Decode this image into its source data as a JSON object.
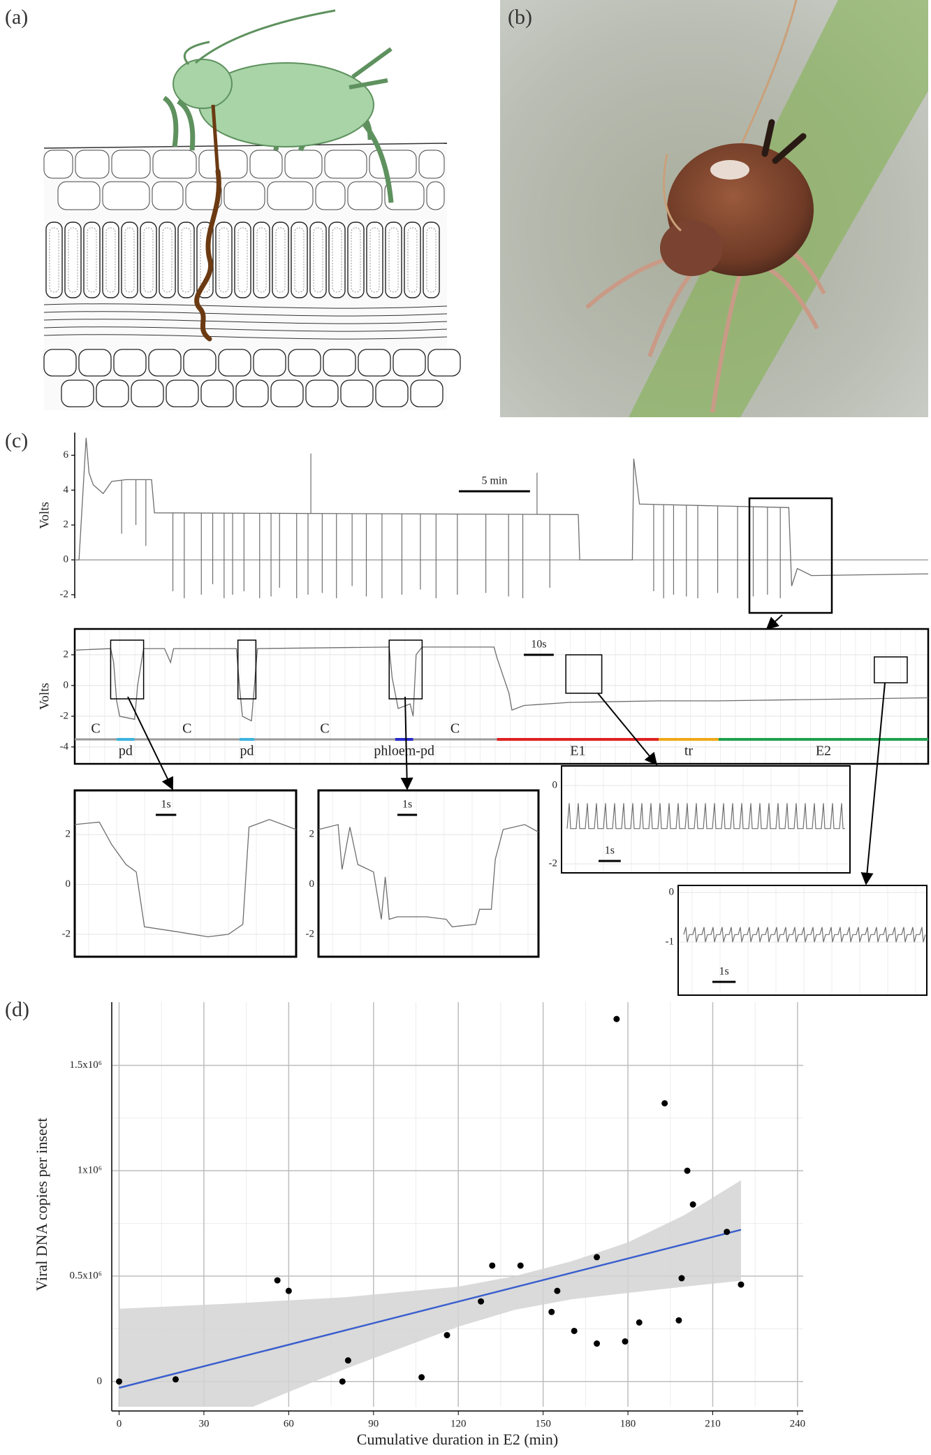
{
  "panel_labels": [
    "(a)",
    "(b)",
    "(c)",
    "(d)"
  ],
  "trace_overview": {
    "axis_label": "Volts",
    "scale_bar": "5 min",
    "scale_bar_length": 5,
    "xlim": [
      0,
      60
    ],
    "ylim": [
      -2.2,
      7.3
    ],
    "yticks": [
      -2,
      0,
      2,
      4,
      6
    ],
    "x": [
      0,
      0.3,
      0.8,
      1.0,
      1.3,
      2.0,
      2.6,
      3.6,
      4.6,
      5.4,
      5.6,
      35.4,
      35.5,
      39.2,
      39.3,
      39.7,
      50.2,
      50.4,
      50.8,
      51.8,
      60
    ],
    "y": [
      0,
      0,
      7,
      5,
      4.3,
      3.8,
      4.5,
      4.6,
      4.6,
      4.6,
      2.7,
      2.6,
      0,
      0,
      5.8,
      3.2,
      3,
      -1.5,
      -0.5,
      -0.9,
      -0.8
    ],
    "excursions": {
      "x": [
        3.3,
        4.3,
        5.0,
        6.9,
        7.7,
        8.9,
        9.7,
        10.5,
        11.1,
        11.9,
        13.0,
        13.8,
        14.4,
        15.6,
        16.4,
        17.4,
        18.4,
        19.5,
        20.5,
        21.6,
        23.0,
        24.3,
        25.4,
        26.9,
        28.9,
        30.5,
        31.5,
        33.4,
        16.6,
        32.5,
        40.7,
        41.4,
        42.1,
        43.0,
        43.8,
        45.2,
        46.6,
        47.7,
        48.7,
        49.6
      ],
      "y": [
        1.5,
        2,
        0.8,
        -1.8,
        -2.2,
        -2.0,
        -1.4,
        -2.2,
        -2.0,
        -1.8,
        -2.2,
        -2.1,
        -1.6,
        -2.2,
        -2.0,
        -1.9,
        -2.2,
        -1.5,
        -2.1,
        -2.2,
        -2.0,
        -1.7,
        -2.2,
        -2.0,
        -1.9,
        -2.1,
        -2.2,
        -1.6,
        6.1,
        5,
        -1.8,
        -2.2,
        -2.0,
        -2.1,
        -2.2,
        -1.9,
        -2.2,
        -2.1,
        -2.0,
        -2.2
      ]
    }
  },
  "trace_zoom": {
    "axis_label": "Volts",
    "scale_bar": "10s",
    "scale_bar_length": 10,
    "xlim": [
      0,
      285
    ],
    "ylim": [
      -5.1,
      3.68
    ],
    "yticks": [
      -4,
      -2,
      0,
      2
    ],
    "x": [
      0,
      12,
      13,
      14,
      15,
      20,
      21,
      23,
      30,
      32,
      33,
      54,
      55,
      56,
      59,
      60,
      61,
      105,
      106,
      108,
      112,
      113,
      114,
      116,
      140,
      141,
      145,
      146,
      150,
      165,
      195,
      215,
      285
    ],
    "y": [
      2.3,
      2.4,
      1.5,
      -1,
      -2,
      -2.2,
      0,
      2.4,
      2.4,
      1.5,
      2.4,
      2.4,
      0,
      -2,
      -2.3,
      0,
      2.4,
      2.5,
      0.5,
      -1.5,
      -1.2,
      -2,
      2,
      2.5,
      2.5,
      1.8,
      -0.5,
      -1.6,
      -1.3,
      -1.1,
      -1.0,
      -1.0,
      -0.8
    ],
    "phases": [
      {
        "name": "C",
        "start": 0,
        "end": 14,
        "color": "#999999"
      },
      {
        "name": "pd",
        "start": 14,
        "end": 20,
        "color": "#3db3e0"
      },
      {
        "name": "C",
        "start": 20,
        "end": 55,
        "color": "#999999"
      },
      {
        "name": "pd",
        "start": 55,
        "end": 60,
        "color": "#3db3e0"
      },
      {
        "name": "C",
        "start": 60,
        "end": 107,
        "color": "#999999"
      },
      {
        "name": "phloem-pd",
        "start": 107,
        "end": 113,
        "color": "#2a2acc"
      },
      {
        "name": "C",
        "start": 113,
        "end": 141,
        "color": "#999999"
      },
      {
        "name": "E1",
        "start": 141,
        "end": 195,
        "color": "#e02020"
      },
      {
        "name": "tr",
        "start": 195,
        "end": 215,
        "color": "#f0a818"
      },
      {
        "name": "E2",
        "start": 215,
        "end": 285,
        "color": "#20a050"
      }
    ]
  },
  "insets": [
    {
      "scale_bar": "1s",
      "scale_bar_length": 1,
      "xlim": [
        0,
        10.8
      ],
      "ylim": [
        -2.9,
        3.77
      ],
      "yticks": [
        -2,
        0,
        2
      ],
      "x": [
        0,
        1.2,
        1.8,
        2.5,
        3,
        3.4,
        5,
        6.5,
        7.5,
        8.2,
        8.5,
        9.5,
        10.8
      ],
      "y": [
        2.4,
        2.5,
        1.6,
        0.8,
        0.5,
        -1.7,
        -1.9,
        -2.1,
        -2.0,
        -1.6,
        2.3,
        2.6,
        2.2
      ]
    },
    {
      "scale_bar": "1s",
      "scale_bar_length": 1,
      "xlim": [
        0,
        11.2
      ],
      "ylim": [
        -2.9,
        3.77
      ],
      "yticks": [
        -2,
        0,
        2
      ],
      "x": [
        0,
        1,
        1.2,
        1.6,
        2,
        2.8,
        3.2,
        3.4,
        3.6,
        4,
        5.5,
        6.5,
        6.8,
        8,
        8.2,
        8.8,
        9,
        9.4,
        10.5,
        11.2
      ],
      "y": [
        2.2,
        2.4,
        0.6,
        2.3,
        0.8,
        0.5,
        -1.4,
        0.3,
        -1.4,
        -1.3,
        -1.3,
        -1.4,
        -1.7,
        -1.6,
        -1.0,
        -1.0,
        1.0,
        2.2,
        2.4,
        2.1
      ]
    },
    {
      "scale_bar": "1s",
      "scale_bar_length": 1,
      "xlim": [
        0,
        13
      ],
      "ylim": [
        -2.23,
        0.5
      ],
      "yticks": [
        -2,
        0
      ],
      "baseline": -1.1,
      "peak": -0.45
    },
    {
      "scale_bar": "1s",
      "scale_bar_length": 1,
      "xlim": [
        0,
        10.7
      ],
      "ylim": [
        -2.07,
        0.14
      ],
      "yticks": [
        -1,
        0
      ],
      "baseline": -0.85,
      "peak": -0.7,
      "trough": -1.0
    }
  ],
  "chart_data": {
    "type": "scatter",
    "x_label": "Cumulative duration in E2 (min)",
    "y_label": "Viral DNA  copies per insect",
    "xlim": [
      -2.6,
      242
    ],
    "ylim": [
      -120000,
      1800000
    ],
    "xticks": [
      0,
      30,
      60,
      90,
      120,
      150,
      180,
      210,
      240
    ],
    "yticks": [
      0,
      {
        "value": 500000,
        "label": "0.5x10⁶"
      },
      {
        "value": 1000000,
        "label": "1x10⁶"
      },
      {
        "value": 1500000,
        "label": "1.5x10⁶"
      }
    ],
    "grid": true,
    "color": "#000000",
    "x": [
      0,
      20,
      56,
      60,
      79,
      81,
      107,
      116,
      128,
      132,
      142,
      153,
      155,
      161,
      169,
      169,
      176,
      179,
      184,
      193,
      198,
      199,
      201,
      203,
      215,
      220
    ],
    "y": [
      0,
      10000,
      480000,
      430000,
      0,
      100000,
      20000,
      220000,
      380000,
      550000,
      550000,
      330000,
      430000,
      240000,
      180000,
      590000,
      1720000,
      190000,
      280000,
      1320000,
      290000,
      490000,
      1000000,
      840000,
      710000,
      460000
    ],
    "fit": {
      "x": [
        0,
        220
      ],
      "y": [
        -30000,
        720000
      ],
      "color": "#3a5fcd"
    },
    "band": {
      "x": [
        0,
        40,
        80,
        120,
        140,
        160,
        180,
        200,
        220
      ],
      "upper": [
        345000,
        370000,
        400000,
        450000,
        500000,
        570000,
        660000,
        790000,
        955000
      ],
      "lower": [
        -400000,
        -160000,
        60000,
        260000,
        340000,
        390000,
        420000,
        450000,
        478000
      ],
      "color": "#d3d3d3"
    }
  }
}
